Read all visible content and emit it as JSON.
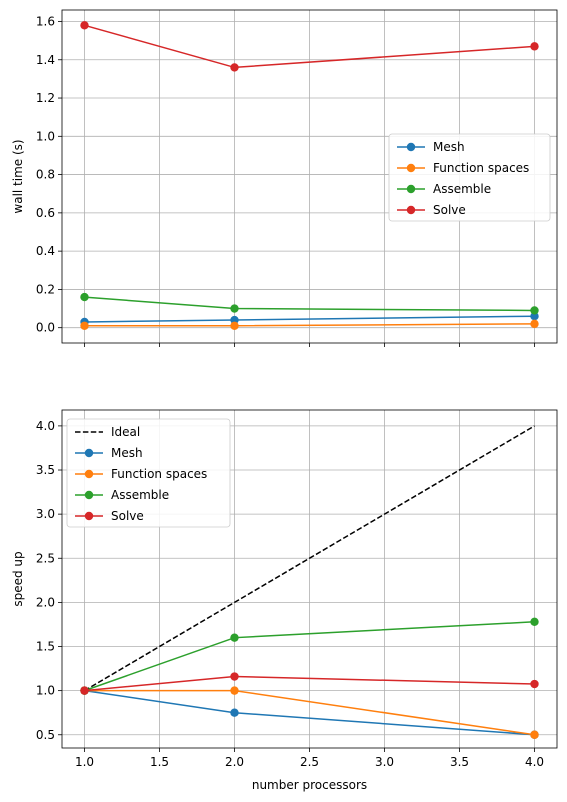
{
  "chart_data": [
    {
      "type": "line",
      "xlabel": "",
      "ylabel": "wall time (s)",
      "x": [
        1.0,
        2.0,
        4.0
      ],
      "xlim": [
        0.85,
        4.15
      ],
      "ylim": [
        -0.08,
        1.66
      ],
      "xticks": [
        1.0,
        1.5,
        2.0,
        2.5,
        3.0,
        3.5,
        4.0
      ],
      "xtick_labels_visible": false,
      "yticks": [
        0.0,
        0.2,
        0.4,
        0.6,
        0.8,
        1.0,
        1.2,
        1.4,
        1.6
      ],
      "ytick_labels": [
        "0.0",
        "0.2",
        "0.4",
        "0.6",
        "0.8",
        "1.0",
        "1.2",
        "1.4",
        "1.6"
      ],
      "grid": true,
      "legend_position": "center-right",
      "series": [
        {
          "name": "Mesh",
          "color": "#1f77b4",
          "marker": "circle",
          "values": [
            0.03,
            0.04,
            0.06
          ]
        },
        {
          "name": "Function spaces",
          "color": "#ff7f0e",
          "marker": "circle",
          "values": [
            0.01,
            0.01,
            0.02
          ]
        },
        {
          "name": "Assemble",
          "color": "#2ca02c",
          "marker": "circle",
          "values": [
            0.16,
            0.1,
            0.09
          ]
        },
        {
          "name": "Solve",
          "color": "#d62728",
          "marker": "circle",
          "values": [
            1.58,
            1.36,
            1.47
          ]
        }
      ]
    },
    {
      "type": "line",
      "xlabel": "number processors",
      "ylabel": "speed up",
      "x": [
        1.0,
        2.0,
        4.0
      ],
      "xlim": [
        0.85,
        4.15
      ],
      "ylim": [
        0.35,
        4.18
      ],
      "xticks": [
        1.0,
        1.5,
        2.0,
        2.5,
        3.0,
        3.5,
        4.0
      ],
      "xtick_labels": [
        "1.0",
        "1.5",
        "2.0",
        "2.5",
        "3.0",
        "3.5",
        "4.0"
      ],
      "xtick_labels_visible": true,
      "yticks": [
        0.5,
        1.0,
        1.5,
        2.0,
        2.5,
        3.0,
        3.5,
        4.0
      ],
      "ytick_labels": [
        "0.5",
        "1.0",
        "1.5",
        "2.0",
        "2.5",
        "3.0",
        "3.5",
        "4.0"
      ],
      "grid": true,
      "legend_position": "upper-left",
      "series": [
        {
          "name": "Ideal",
          "color": "#000000",
          "dashed": true,
          "marker": "none",
          "values": [
            1.0,
            2.0,
            4.0
          ]
        },
        {
          "name": "Mesh",
          "color": "#1f77b4",
          "marker": "circle",
          "values": [
            1.0,
            0.75,
            0.5
          ]
        },
        {
          "name": "Function spaces",
          "color": "#ff7f0e",
          "marker": "circle",
          "values": [
            1.0,
            1.0,
            0.5
          ]
        },
        {
          "name": "Assemble",
          "color": "#2ca02c",
          "marker": "circle",
          "values": [
            1.0,
            1.6,
            1.78
          ]
        },
        {
          "name": "Solve",
          "color": "#d62728",
          "marker": "circle",
          "values": [
            1.0,
            1.16,
            1.075
          ]
        }
      ]
    }
  ]
}
